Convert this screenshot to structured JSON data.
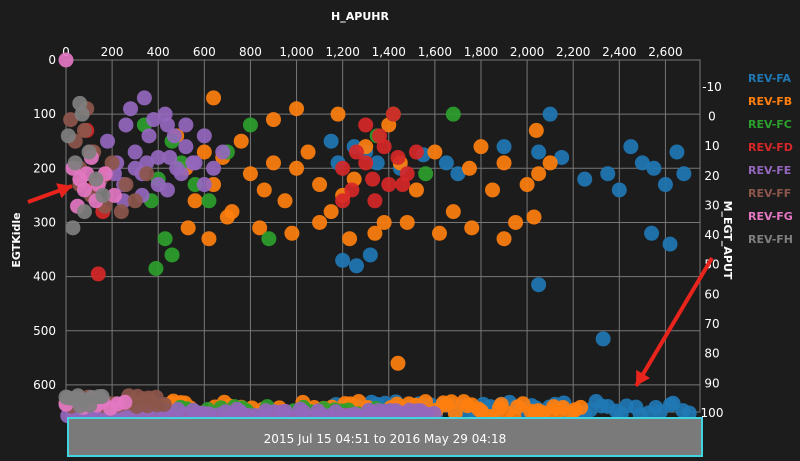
{
  "chart_data": {
    "type": "scatter",
    "title": "",
    "xlabel": "H_APUHR",
    "ylabel": "EGTKidle",
    "y2label": "M_EGT_APUT",
    "xlim": [
      0,
      2750
    ],
    "x_ticks": [
      0,
      200,
      400,
      600,
      800,
      1000,
      1200,
      1400,
      1600,
      1800,
      2000,
      2200,
      2400,
      2600
    ],
    "x_tick_labels": [
      "0",
      "200",
      "400",
      "600",
      "800",
      "1,000",
      "1,200",
      "1,400",
      "1,600",
      "1,800",
      "2,000",
      "2,200",
      "2,400",
      "2,600"
    ],
    "ylim": [
      0,
      650
    ],
    "y_ticks": [
      100,
      200,
      300,
      400,
      500,
      600
    ],
    "y_tick_labels": [
      "100",
      "200",
      "300",
      "400",
      "500",
      "600"
    ],
    "y2lim": [
      -15,
      100
    ],
    "y2_ticks": [
      -10,
      0,
      10,
      20,
      30,
      40,
      50,
      60,
      70,
      80,
      90,
      100
    ],
    "y2_tick_labels": [
      "-10",
      "0",
      "10",
      "20",
      "30",
      "40",
      "50",
      "60",
      "70",
      "80",
      "90",
      "100"
    ],
    "grid": true,
    "legend_position": "right",
    "series": [
      {
        "name": "REV-FA",
        "color": "#1f77b4",
        "upper": {
          "x": [
            1150,
            1250,
            1300,
            1350,
            1450,
            1550,
            1650,
            1700,
            1900,
            2050,
            2150,
            2250,
            2350,
            2450,
            2500,
            2550,
            2600,
            2650,
            2680,
            1200,
            1260,
            1320,
            2540,
            2620,
            2330,
            2050,
            1180,
            2100,
            2400
          ],
          "y": [
            150,
            160,
            170,
            190,
            200,
            175,
            190,
            210,
            160,
            170,
            180,
            220,
            210,
            160,
            190,
            200,
            230,
            170,
            210,
            370,
            380,
            360,
            320,
            340,
            515,
            415,
            190,
            100,
            240
          ]
        },
        "lower": {
          "x_range": [
            1150,
            2700
          ],
          "y_range": [
            630,
            655
          ],
          "count": 55
        }
      },
      {
        "name": "REV-FB",
        "color": "#ff7f0e",
        "upper": {
          "x": [
            480,
            520,
            560,
            600,
            640,
            680,
            720,
            760,
            800,
            860,
            900,
            950,
            1000,
            1050,
            1100,
            1150,
            1200,
            1250,
            1300,
            1380,
            1450,
            1520,
            1600,
            1680,
            1750,
            1800,
            1850,
            1900,
            1950,
            2000,
            2050,
            2100,
            530,
            620,
            700,
            840,
            980,
            1100,
            1230,
            1340,
            1480,
            1620,
            1760,
            1900,
            2030,
            900,
            1000,
            1180,
            1400,
            2040,
            640,
            1440
          ],
          "y": [
            140,
            200,
            260,
            170,
            230,
            180,
            280,
            150,
            210,
            240,
            190,
            260,
            200,
            170,
            230,
            280,
            250,
            220,
            160,
            300,
            190,
            240,
            170,
            280,
            200,
            160,
            240,
            190,
            300,
            230,
            210,
            190,
            310,
            330,
            290,
            310,
            320,
            300,
            330,
            320,
            300,
            320,
            310,
            330,
            290,
            110,
            90,
            100,
            120,
            130,
            70,
            560
          ]
        },
        "lower": {
          "x_range": [
            250,
            2230
          ],
          "y_range": [
            630,
            660
          ],
          "count": 90
        }
      },
      {
        "name": "REV-FC",
        "color": "#2ca02c",
        "upper": {
          "x": [
            340,
            370,
            400,
            430,
            460,
            500,
            560,
            620,
            700,
            800,
            1350,
            1420,
            1560,
            1680,
            390,
            460,
            880
          ],
          "y": [
            120,
            260,
            220,
            330,
            150,
            190,
            230,
            260,
            170,
            120,
            140,
            100,
            210,
            100,
            385,
            360,
            330
          ]
        },
        "lower": {
          "x_range": [
            200,
            1500
          ],
          "y_range": [
            640,
            665
          ],
          "count": 45
        }
      },
      {
        "name": "REV-FD",
        "color": "#d62728",
        "upper": {
          "x": [
            90,
            110,
            130,
            160,
            180,
            1200,
            1260,
            1300,
            1330,
            1380,
            1400,
            1440,
            1480,
            1520,
            1300,
            1360,
            1420,
            1240,
            1340,
            1460,
            1200,
            140
          ],
          "y": [
            130,
            170,
            230,
            280,
            210,
            200,
            170,
            190,
            220,
            160,
            230,
            180,
            210,
            170,
            120,
            140,
            100,
            240,
            260,
            230,
            260,
            395
          ]
        },
        "lower": {
          "x_range": [
            100,
            1500
          ],
          "y_range": [
            655,
            670
          ],
          "count": 25
        }
      },
      {
        "name": "REV-FE",
        "color": "#9467bd",
        "upper": {
          "x": [
            180,
            220,
            260,
            300,
            330,
            360,
            400,
            440,
            480,
            520,
            560,
            600,
            640,
            680,
            210,
            250,
            300,
            350,
            400,
            450,
            500,
            550,
            600,
            280,
            340,
            380,
            430,
            470,
            520,
            250,
            330,
            440
          ],
          "y": [
            150,
            190,
            120,
            170,
            210,
            140,
            180,
            120,
            200,
            160,
            190,
            140,
            200,
            170,
            210,
            230,
            200,
            190,
            230,
            180,
            210,
            190,
            230,
            90,
            70,
            110,
            100,
            140,
            120,
            260,
            250,
            240
          ]
        },
        "lower": {
          "x_range": [
            10,
            1600
          ],
          "y_range": [
            645,
            660
          ],
          "count": 60
        }
      },
      {
        "name": "REV-FF",
        "color": "#8c564b",
        "upper": {
          "x": [
            20,
            40,
            60,
            80,
            120,
            150,
            200,
            260,
            300,
            350,
            60,
            110,
            170,
            240,
            90
          ],
          "y": [
            110,
            150,
            200,
            130,
            170,
            220,
            190,
            230,
            260,
            210,
            230,
            250,
            270,
            280,
            90
          ]
        },
        "lower": {
          "x_range": [
            0,
            420
          ],
          "y_range": [
            620,
            640
          ],
          "count": 25
        }
      },
      {
        "name": "REV-FG",
        "color": "#e377c2",
        "upper": {
          "x": [
            0,
            30,
            60,
            80,
            110,
            140,
            170,
            210,
            50,
            90,
            130
          ],
          "y": [
            0,
            200,
            220,
            240,
            180,
            230,
            210,
            250,
            270,
            210,
            260
          ]
        },
        "lower": {
          "x_range": [
            0,
            250
          ],
          "y_range": [
            625,
            645
          ],
          "count": 10
        }
      },
      {
        "name": "REV-FH",
        "color": "#7f7f7f",
        "upper": {
          "x": [
            10,
            40,
            70,
            100,
            130,
            160,
            30,
            80,
            60
          ],
          "y": [
            140,
            190,
            100,
            170,
            220,
            250,
            310,
            280,
            80
          ]
        },
        "lower": {
          "x_range": [
            0,
            150
          ],
          "y_range": [
            620,
            640
          ],
          "count": 10
        }
      }
    ]
  },
  "time_range": {
    "label": "2015 Jul 15 04:51 to 2016 May 29 04:18"
  },
  "annotations": {
    "arrow_color": "#e8241c"
  }
}
